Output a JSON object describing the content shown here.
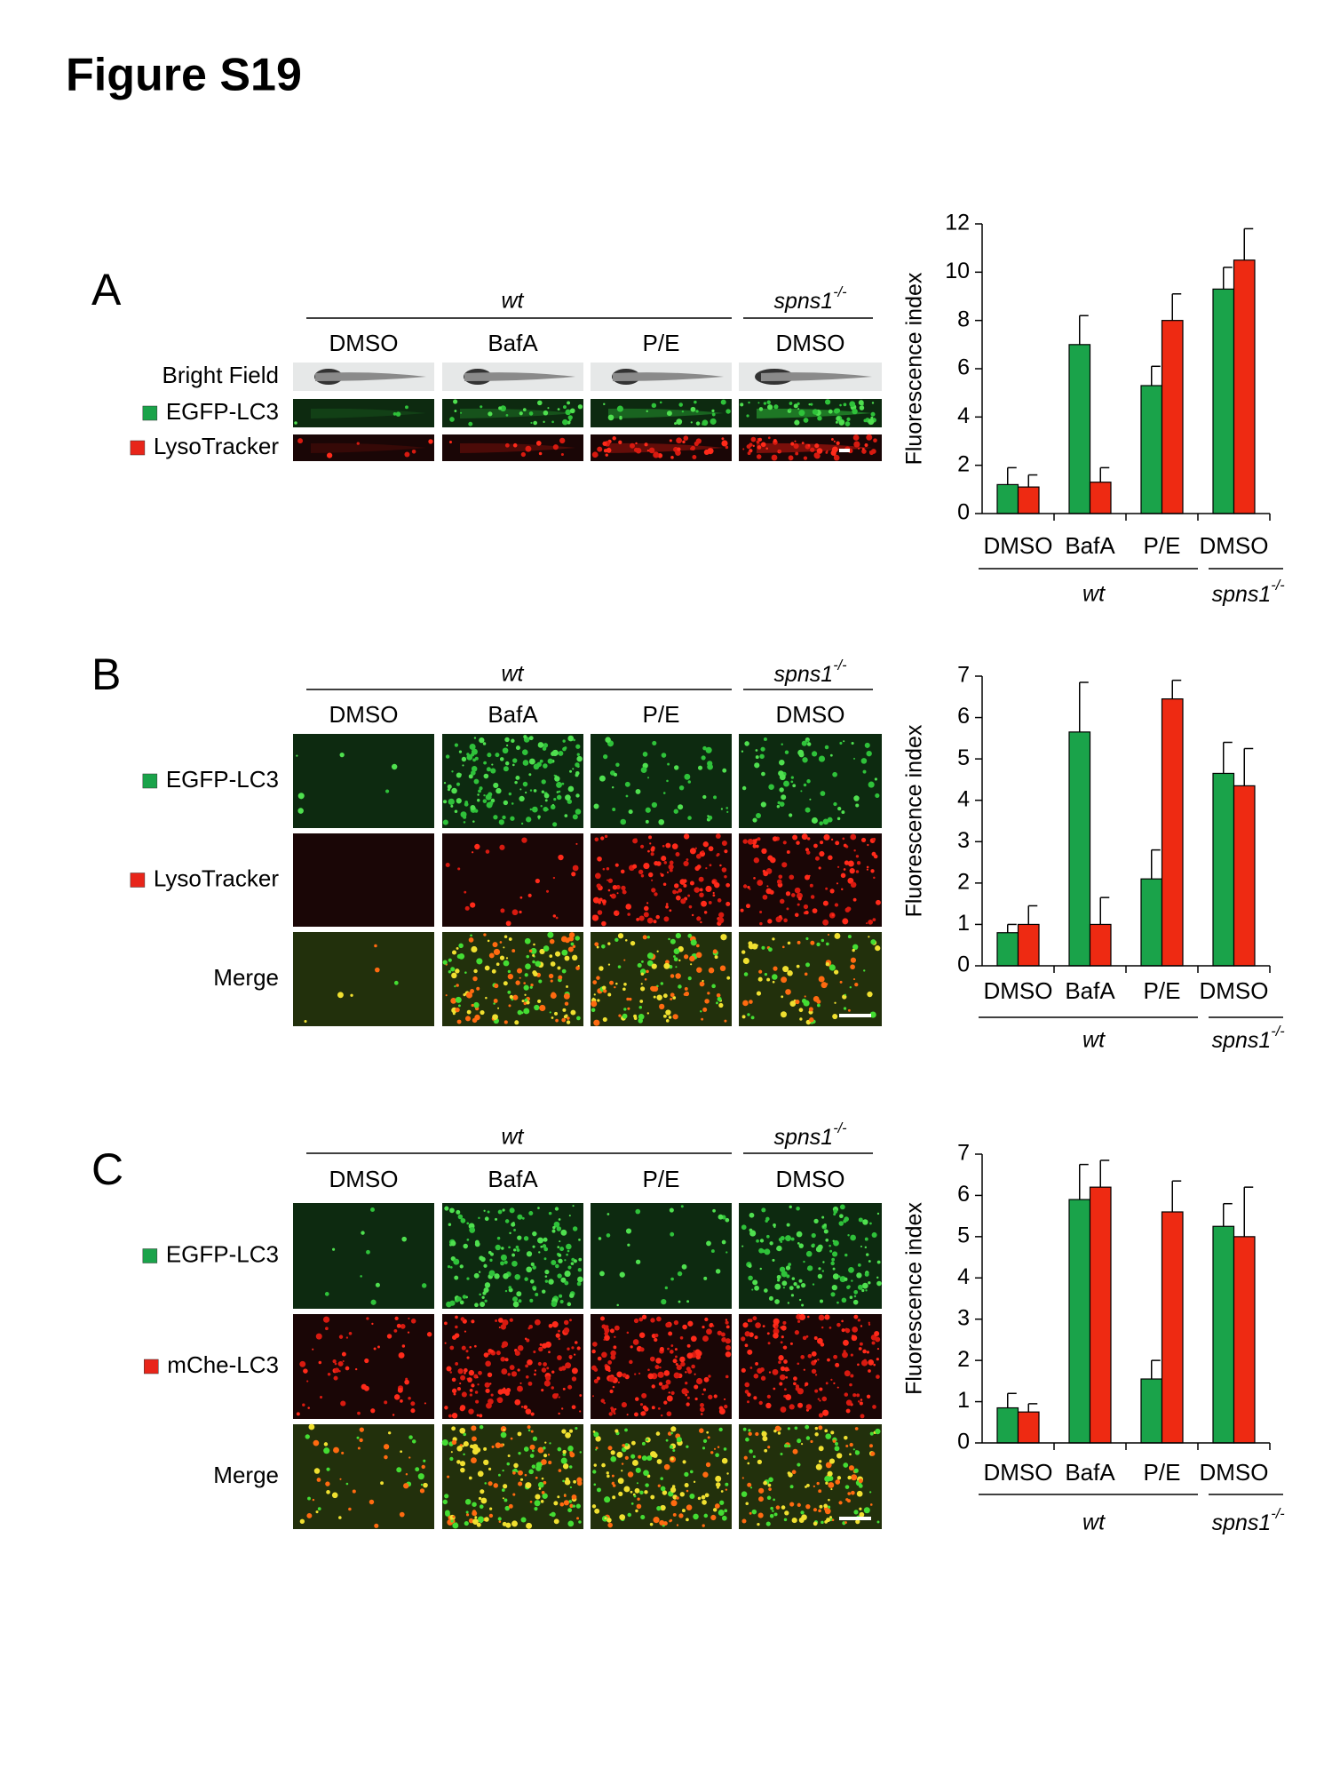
{
  "figure_title": "Figure S19",
  "panels": [
    {
      "label": "A",
      "group_labels": {
        "wt": "wt",
        "mutant": {
          "base": "spns1",
          "sup": "-/-"
        }
      },
      "columns": [
        "DMSO",
        "BafA",
        "P/E",
        "DMSO"
      ],
      "rows": [
        "Bright Field",
        "EGFP-LC3",
        "LysoTracker"
      ],
      "chart": {
        "type": "bar",
        "y_label": "Fluorescence index",
        "categories": [
          "DMSO",
          "BafA",
          "P/E",
          "DMSO"
        ],
        "group_labels": {
          "wt": "wt",
          "mutant": {
            "base": "spns1",
            "sup": "-/-"
          }
        },
        "series": [
          {
            "color": "#1aa34a",
            "values": [
              1.2,
              7.0,
              5.3,
              9.3
            ],
            "errors": [
              0.7,
              1.2,
              0.8,
              0.9
            ]
          },
          {
            "color": "#ee2a12",
            "values": [
              1.1,
              1.3,
              8.0,
              10.5
            ],
            "errors": [
              0.5,
              0.6,
              1.1,
              1.3
            ]
          }
        ],
        "ylim": [
          0,
          12
        ],
        "yticks": [
          0,
          2,
          4,
          6,
          8,
          10,
          12
        ]
      }
    },
    {
      "label": "B",
      "group_labels": {
        "wt": "wt",
        "mutant": {
          "base": "spns1",
          "sup": "-/-"
        }
      },
      "columns": [
        "DMSO",
        "BafA",
        "P/E",
        "DMSO"
      ],
      "rows": [
        "EGFP-LC3",
        "LysoTracker",
        "Merge"
      ],
      "chart": {
        "type": "bar",
        "y_label": "Fluorescence index",
        "categories": [
          "DMSO",
          "BafA",
          "P/E",
          "DMSO"
        ],
        "group_labels": {
          "wt": "wt",
          "mutant": {
            "base": "spns1",
            "sup": "-/-"
          }
        },
        "series": [
          {
            "color": "#1aa34a",
            "values": [
              0.8,
              5.65,
              2.1,
              4.65
            ],
            "errors": [
              0.2,
              1.2,
              0.7,
              0.75
            ]
          },
          {
            "color": "#ee2a12",
            "values": [
              1.0,
              1.0,
              6.45,
              4.35
            ],
            "errors": [
              0.45,
              0.65,
              0.45,
              0.9
            ]
          }
        ],
        "ylim": [
          0,
          7
        ],
        "yticks": [
          0,
          1,
          2,
          3,
          4,
          5,
          6,
          7
        ]
      }
    },
    {
      "label": "C",
      "group_labels": {
        "wt": "wt",
        "mutant": {
          "base": "spns1",
          "sup": "-/-"
        }
      },
      "columns": [
        "DMSO",
        "BafA",
        "P/E",
        "DMSO"
      ],
      "rows": [
        "EGFP-LC3",
        "mChe-LC3",
        "Merge"
      ],
      "chart": {
        "type": "bar",
        "y_label": "Fluorescence index",
        "categories": [
          "DMSO",
          "BafA",
          "P/E",
          "DMSO"
        ],
        "group_labels": {
          "wt": "wt",
          "mutant": {
            "base": "spns1",
            "sup": "-/-"
          }
        },
        "series": [
          {
            "color": "#1aa34a",
            "values": [
              0.85,
              5.9,
              1.55,
              5.25
            ],
            "errors": [
              0.35,
              0.85,
              0.45,
              0.55
            ]
          },
          {
            "color": "#ee2a12",
            "values": [
              0.75,
              6.2,
              5.6,
              5.0
            ],
            "errors": [
              0.2,
              0.65,
              0.75,
              1.2
            ]
          }
        ],
        "ylim": [
          0,
          7
        ],
        "yticks": [
          0,
          1,
          2,
          3,
          4,
          5,
          6,
          7
        ]
      }
    }
  ]
}
